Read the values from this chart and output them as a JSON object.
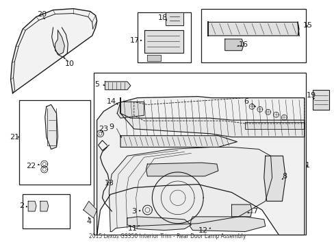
{
  "bg_color": "#ffffff",
  "line_color": "#1a1a1a",
  "fig_width": 4.89,
  "fig_height": 3.6,
  "dpi": 100,
  "title": "2015 Lexus GS350 Interior Trim - Rear Door Lamp Assembly",
  "font_size_label": 8,
  "font_size_title": 5.5
}
